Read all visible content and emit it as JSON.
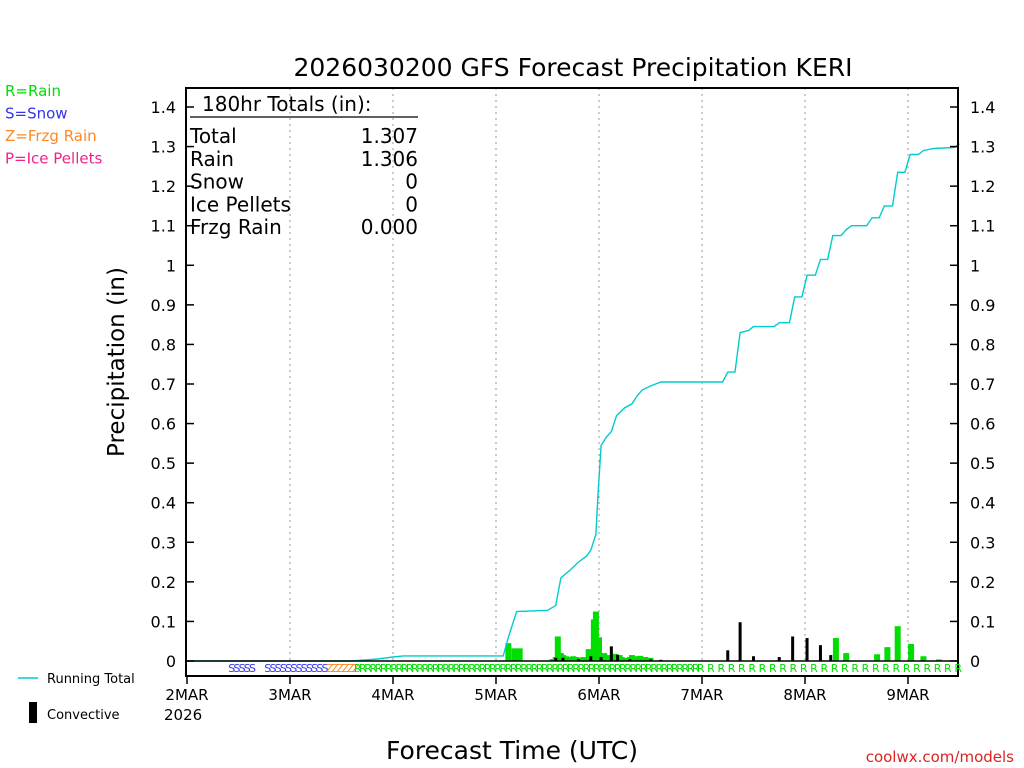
{
  "chart_data": {
    "type": "bar+line",
    "title": "2026030200 GFS Forecast Precipitation KERI",
    "xlabel": "Forecast Time (UTC)",
    "ylabel": "Precipitation (in)",
    "ylim": [
      0,
      1.4
    ],
    "xlim_days": [
      0,
      7.5
    ],
    "y_ticks": [
      "0",
      "0.1",
      "0.2",
      "0.3",
      "0.4",
      "0.5",
      "0.6",
      "0.7",
      "0.8",
      "0.9",
      "1",
      "1.1",
      "1.2",
      "1.3",
      "1.4"
    ],
    "x_ticks": [
      {
        "day": 0,
        "label": "2MAR"
      },
      {
        "day": 1,
        "label": "3MAR"
      },
      {
        "day": 2,
        "label": "4MAR"
      },
      {
        "day": 3,
        "label": "5MAR"
      },
      {
        "day": 4,
        "label": "6MAR"
      },
      {
        "day": 5,
        "label": "7MAR"
      },
      {
        "day": 6,
        "label": "8MAR"
      },
      {
        "day": 7,
        "label": "9MAR"
      }
    ],
    "year_label": "2026",
    "legend_types": [
      {
        "text": "R=Rain",
        "color": "#00dd00"
      },
      {
        "text": "S=Snow",
        "color": "#3333ee"
      },
      {
        "text": "Z=Frzg Rain",
        "color": "#ff8822"
      },
      {
        "text": "P=Ice Pellets",
        "color": "#ee2288"
      }
    ],
    "legend_series": [
      {
        "text": "Running Total",
        "color": "#00cccc"
      },
      {
        "text": "Convective",
        "color": "#000000"
      }
    ],
    "totals": {
      "header": "180hr Totals (in):",
      "rows": [
        {
          "label": "Total",
          "value": "1.307"
        },
        {
          "label": "Rain",
          "value": "1.306"
        },
        {
          "label": "Snow",
          "value": "0"
        },
        {
          "label": "Ice Pellets",
          "value": "0"
        },
        {
          "label": "Frzg Rain",
          "value": "0.000"
        }
      ]
    },
    "running_total": [
      [
        0,
        0
      ],
      [
        1.6,
        0
      ],
      [
        1.85,
        0.005
      ],
      [
        2.0,
        0.01
      ],
      [
        2.1,
        0.013
      ],
      [
        2.5,
        0.013
      ],
      [
        3.07,
        0.013
      ],
      [
        3.12,
        0.06
      ],
      [
        3.2,
        0.125
      ],
      [
        3.5,
        0.128
      ],
      [
        3.58,
        0.14
      ],
      [
        3.63,
        0.21
      ],
      [
        3.72,
        0.23
      ],
      [
        3.8,
        0.25
      ],
      [
        3.88,
        0.265
      ],
      [
        3.92,
        0.28
      ],
      [
        3.97,
        0.32
      ],
      [
        3.99,
        0.42
      ],
      [
        4.02,
        0.545
      ],
      [
        4.07,
        0.565
      ],
      [
        4.12,
        0.58
      ],
      [
        4.17,
        0.62
      ],
      [
        4.25,
        0.64
      ],
      [
        4.32,
        0.65
      ],
      [
        4.37,
        0.67
      ],
      [
        4.42,
        0.685
      ],
      [
        4.5,
        0.695
      ],
      [
        4.6,
        0.705
      ],
      [
        5.2,
        0.705
      ],
      [
        5.25,
        0.73
      ],
      [
        5.32,
        0.73
      ],
      [
        5.37,
        0.83
      ],
      [
        5.45,
        0.835
      ],
      [
        5.5,
        0.845
      ],
      [
        5.7,
        0.845
      ],
      [
        5.75,
        0.855
      ],
      [
        5.85,
        0.855
      ],
      [
        5.9,
        0.92
      ],
      [
        5.97,
        0.92
      ],
      [
        6.02,
        0.975
      ],
      [
        6.1,
        0.975
      ],
      [
        6.15,
        1.015
      ],
      [
        6.22,
        1.015
      ],
      [
        6.27,
        1.075
      ],
      [
        6.35,
        1.075
      ],
      [
        6.4,
        1.09
      ],
      [
        6.45,
        1.1
      ],
      [
        6.6,
        1.1
      ],
      [
        6.65,
        1.12
      ],
      [
        6.72,
        1.12
      ],
      [
        6.77,
        1.15
      ],
      [
        6.85,
        1.15
      ],
      [
        6.9,
        1.235
      ],
      [
        6.97,
        1.235
      ],
      [
        7.02,
        1.28
      ],
      [
        7.1,
        1.28
      ],
      [
        7.15,
        1.29
      ],
      [
        7.25,
        1.295
      ],
      [
        7.45,
        1.298
      ],
      [
        7.5,
        1.307
      ]
    ],
    "rain_bars": [
      [
        3.12,
        0.045
      ],
      [
        3.18,
        0.032
      ],
      [
        3.23,
        0.032
      ],
      [
        3.55,
        0.005
      ],
      [
        3.58,
        0.01
      ],
      [
        3.6,
        0.062
      ],
      [
        3.63,
        0.02
      ],
      [
        3.65,
        0.015
      ],
      [
        3.68,
        0.012
      ],
      [
        3.72,
        0.01
      ],
      [
        3.75,
        0.012
      ],
      [
        3.78,
        0.01
      ],
      [
        3.8,
        0.008
      ],
      [
        3.85,
        0.01
      ],
      [
        3.9,
        0.03
      ],
      [
        3.95,
        0.105
      ],
      [
        3.97,
        0.125
      ],
      [
        4.0,
        0.06
      ],
      [
        4.05,
        0.02
      ],
      [
        4.08,
        0.015
      ],
      [
        4.15,
        0.018
      ],
      [
        4.2,
        0.015
      ],
      [
        4.22,
        0.01
      ],
      [
        4.25,
        0.008
      ],
      [
        4.3,
        0.01
      ],
      [
        4.32,
        0.015
      ],
      [
        4.35,
        0.012
      ],
      [
        4.4,
        0.013
      ],
      [
        4.45,
        0.01
      ],
      [
        4.5,
        0.008
      ],
      [
        6.3,
        0.058
      ],
      [
        6.4,
        0.02
      ],
      [
        6.7,
        0.017
      ],
      [
        6.8,
        0.035
      ],
      [
        6.9,
        0.088
      ],
      [
        7.03,
        0.043
      ],
      [
        7.15,
        0.012
      ],
      [
        7.3,
        0.004
      ]
    ],
    "conv_bars": [
      [
        3.58,
        0.008
      ],
      [
        3.65,
        0.008
      ],
      [
        3.8,
        0.005
      ],
      [
        3.92,
        0.012
      ],
      [
        4.02,
        0.01
      ],
      [
        4.12,
        0.037
      ],
      [
        4.18,
        0.016
      ],
      [
        4.3,
        0.005
      ],
      [
        4.5,
        0.004
      ],
      [
        4.6,
        0.003
      ],
      [
        5.25,
        0.027
      ],
      [
        5.37,
        0.098
      ],
      [
        5.5,
        0.012
      ],
      [
        5.75,
        0.01
      ],
      [
        5.88,
        0.062
      ],
      [
        6.02,
        0.058
      ],
      [
        6.15,
        0.04
      ],
      [
        6.25,
        0.015
      ]
    ],
    "type_markers": [
      {
        "start": 0.4,
        "end": 0.63,
        "char": "S",
        "color": "#3333ee"
      },
      {
        "start": 0.75,
        "end": 1.35,
        "char": "S",
        "color": "#3333ee"
      },
      {
        "start": 1.35,
        "end": 1.62,
        "char": "Z",
        "color": "#ff8822"
      },
      {
        "start": 1.62,
        "end": 4.95,
        "char": "R",
        "color": "#00dd00"
      },
      {
        "start": 4.95,
        "end": 7.5,
        "char": "R",
        "color": "#00dd00"
      }
    ]
  },
  "footer": {
    "credit": "coolwx.com/models"
  }
}
